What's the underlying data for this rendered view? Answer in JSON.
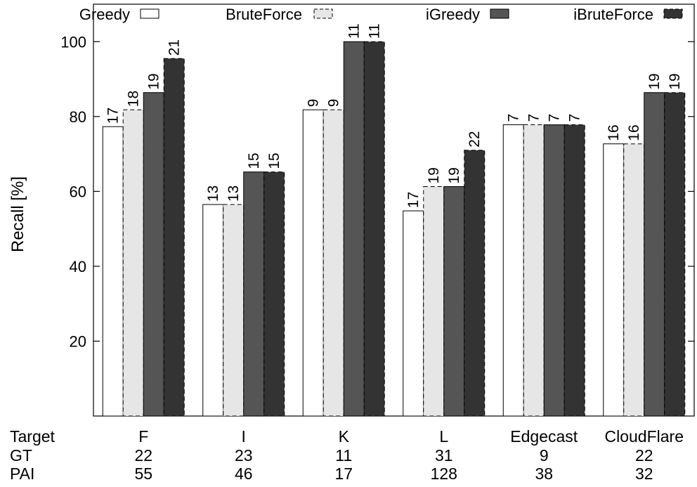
{
  "chart_data": {
    "type": "bar",
    "title": "",
    "xlabel": "",
    "ylabel": "Recall [%]",
    "ylim": [
      0,
      110
    ],
    "yticks": [
      20,
      40,
      60,
      80,
      100
    ],
    "grid": false,
    "legend_position": "top",
    "categories": [
      "F",
      "I",
      "K",
      "L",
      "Edgecast",
      "CloudFlare"
    ],
    "series": [
      {
        "name": "Greedy",
        "values": [
          77.3,
          56.5,
          81.8,
          54.8,
          77.8,
          72.7
        ],
        "labels": [
          "17",
          "13",
          "9",
          "17",
          "7",
          "16"
        ],
        "fill": "#ffffff",
        "dashed": false
      },
      {
        "name": "BruteForce",
        "values": [
          81.8,
          56.5,
          81.8,
          61.3,
          77.8,
          72.7
        ],
        "labels": [
          "18",
          "13",
          "9",
          "19",
          "7",
          "16"
        ],
        "fill": "#e6e6e6",
        "dashed": true
      },
      {
        "name": "iGreedy",
        "values": [
          86.4,
          65.2,
          100,
          61.3,
          77.8,
          86.4
        ],
        "labels": [
          "19",
          "15",
          "11",
          "19",
          "7",
          "19"
        ],
        "fill": "#555555",
        "dashed": false
      },
      {
        "name": "iBruteForce",
        "values": [
          95.5,
          65.2,
          100,
          71.0,
          77.8,
          86.4
        ],
        "labels": [
          "21",
          "15",
          "11",
          "22",
          "7",
          "19"
        ],
        "fill": "#333333",
        "dashed": true
      }
    ],
    "table": {
      "row_labels": [
        "Target",
        "GT",
        "PAI"
      ],
      "gt": [
        "22",
        "23",
        "11",
        "31",
        "9",
        "22"
      ],
      "pai": [
        "55",
        "46",
        "17",
        "128",
        "38",
        "32"
      ]
    }
  }
}
